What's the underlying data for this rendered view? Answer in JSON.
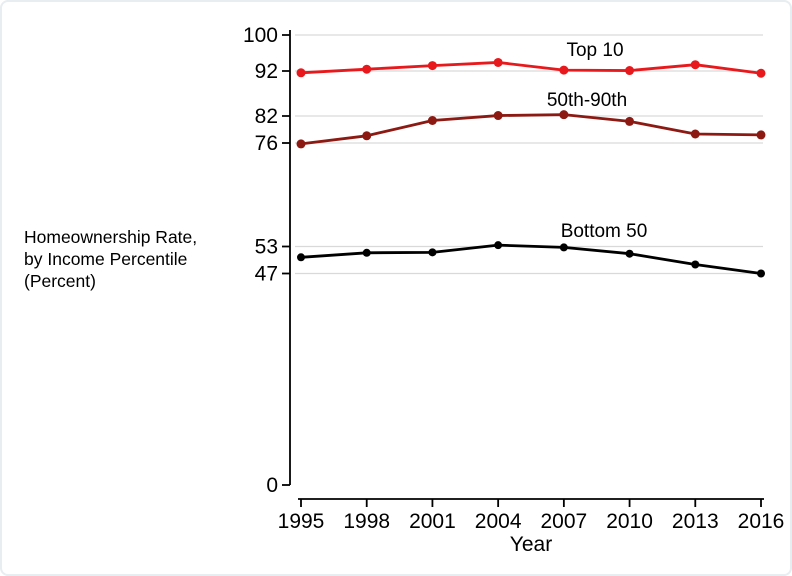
{
  "frame": {
    "background": "#ffffff",
    "border_color": "#e7edf0"
  },
  "y_axis_title": {
    "lines": [
      "Homeownership Rate,",
      "by Income Percentile",
      "(Percent)"
    ]
  },
  "chart_data": {
    "type": "line",
    "title": "",
    "xlabel": "Year",
    "ylabel": "Homeownership Rate, by Income Percentile (Percent)",
    "x": [
      1995,
      1998,
      2001,
      2004,
      2007,
      2010,
      2013,
      2016
    ],
    "x_tick_labels": [
      "1995",
      "1998",
      "2001",
      "2004",
      "2007",
      "2010",
      "2013",
      "2016"
    ],
    "y_ticks": [
      0,
      47,
      53,
      76,
      82,
      92,
      100
    ],
    "y_tick_labels": [
      "0",
      "47",
      "53",
      "76",
      "82",
      "92",
      "100"
    ],
    "gridline_values": [
      47,
      53,
      76,
      82,
      92,
      100
    ],
    "ylim": [
      0,
      100
    ],
    "grid": true,
    "legend_position": "inline-labels",
    "series": [
      {
        "name": "Top 10",
        "color": "#e8191c",
        "values": [
          91.6,
          92.4,
          93.2,
          93.9,
          92.2,
          92.1,
          93.4,
          91.5
        ]
      },
      {
        "name": "50th-90th",
        "color": "#8c1a13",
        "values": [
          75.8,
          77.6,
          81.0,
          82.1,
          82.3,
          80.8,
          78.0,
          77.8
        ]
      },
      {
        "name": "Bottom 50",
        "color": "#000000",
        "values": [
          50.6,
          51.6,
          51.7,
          53.3,
          52.8,
          51.4,
          49.0,
          47.0
        ]
      }
    ]
  }
}
